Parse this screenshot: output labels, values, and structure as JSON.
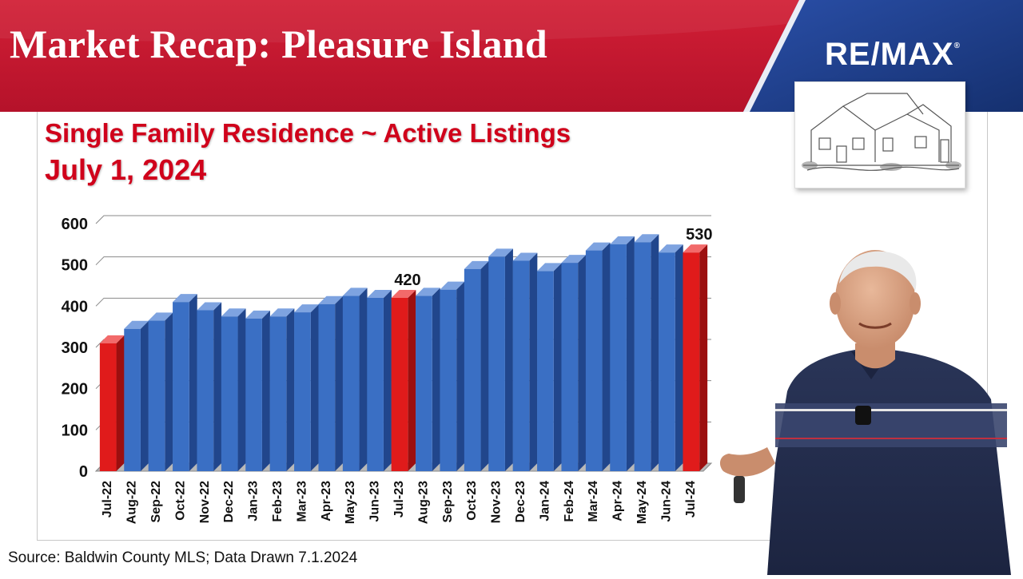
{
  "header": {
    "title": "Market Recap: Pleasure Island",
    "logo_text": "RE/MAX",
    "logo_mark": "®",
    "colors": {
      "red": "#c8192e",
      "blue": "#1f3c88"
    }
  },
  "chart_data": {
    "type": "bar",
    "title": "Single Family Residence ~ Active Listings",
    "subtitle": "July 1, 2024",
    "categories": [
      "Jul-22",
      "Aug-22",
      "Sep-22",
      "Oct-22",
      "Nov-22",
      "Dec-22",
      "Jan-23",
      "Feb-23",
      "Mar-23",
      "Apr-23",
      "May-23",
      "Jun-23",
      "Jul-23",
      "Aug-23",
      "Sep-23",
      "Oct-23",
      "Nov-23",
      "Dec-23",
      "Jan-24",
      "Feb-24",
      "Mar-24",
      "Apr-24",
      "May-24",
      "Jun-24",
      "Jul-24"
    ],
    "values": [
      310,
      345,
      365,
      410,
      390,
      375,
      370,
      375,
      385,
      405,
      425,
      420,
      420,
      425,
      440,
      490,
      520,
      510,
      485,
      505,
      535,
      550,
      555,
      530,
      530
    ],
    "highlighted": [
      "Jul-22",
      "Jul-23",
      "Jul-24"
    ],
    "data_labels": [
      {
        "category": "Jul-23",
        "label": "420"
      },
      {
        "category": "Jul-24",
        "label": "530"
      }
    ],
    "ylim": [
      0,
      600
    ],
    "yticks": [
      0,
      100,
      200,
      300,
      400,
      500,
      600
    ],
    "grid": true,
    "colors": {
      "default": "#3a6fc4",
      "highlight": "#e01b1b"
    }
  },
  "footer": {
    "source": "Source: Baldwin County MLS; Data Drawn 7.1.2024"
  }
}
